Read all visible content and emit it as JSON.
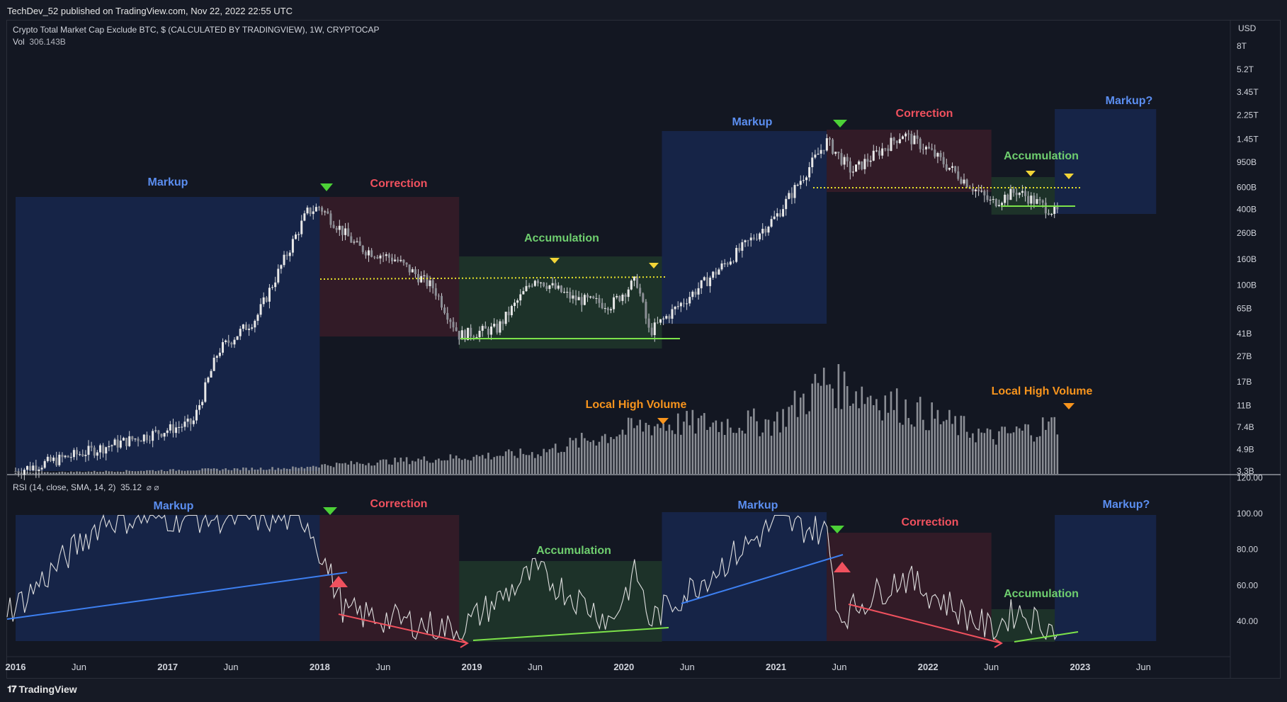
{
  "header": {
    "publisher": "TechDev_52 published on TradingView.com, Nov 22, 2022 22:55 UTC"
  },
  "footer": {
    "brand": "TradingView"
  },
  "colors": {
    "markup": "#5b8ef0",
    "correction": "#f0515e",
    "accumulation": "#6fcf6f",
    "volume_label": "#f7941d",
    "support": "#7ce24a",
    "resistance": "#e6e22b",
    "candle": "#d8d8d8",
    "volume": "#8a8d94",
    "background": "#131722"
  },
  "main": {
    "title": "Crypto Total Market Cap Exclude BTC, $ (CALCULATED BY TRADINGVIEW), 1W, CRYPTOCAP",
    "vol_label": "Vol",
    "vol_value": "306.143B",
    "currency": "USD",
    "y_ticks": [
      "8T",
      "5.2T",
      "3.45T",
      "2.25T",
      "1.45T",
      "950B",
      "600B",
      "400B",
      "260B",
      "160B",
      "100B",
      "65B",
      "41B",
      "27B",
      "17B",
      "11B",
      "7.4B",
      "4.9B",
      "3.3B"
    ],
    "labels": {
      "markup_1": "Markup",
      "correction_1": "Correction",
      "accumulation_1": "Accumulation",
      "markup_2": "Markup",
      "correction_2": "Correction",
      "accumulation_2": "Accumulation",
      "markup_3": "Markup?",
      "local_high_volume_1": "Local High Volume",
      "local_high_volume_2": "Local High Volume"
    }
  },
  "rsi": {
    "legend": "RSI (14, close, SMA, 14, 2)",
    "legend_value": "35.12",
    "legend_extra": "⌀ ⌀",
    "y_ticks": [
      "120.00",
      "100.00",
      "80.00",
      "60.00",
      "40.00"
    ],
    "labels": {
      "markup_1": "Markup",
      "correction_1": "Correction",
      "accumulation_1": "Accumulation",
      "markup_2": "Markup",
      "correction_2": "Correction",
      "accumulation_2": "Accumulation",
      "markup_3": "Markup?"
    }
  },
  "x_axis": {
    "ticks": [
      "2016",
      "Jun",
      "2017",
      "Jun",
      "2018",
      "Jun",
      "2019",
      "Jun",
      "2020",
      "Jun",
      "2021",
      "Jun",
      "2022",
      "Jun",
      "2023",
      "Jun"
    ]
  },
  "chart_data": {
    "type": "candlestick",
    "title": "Crypto Total Market Cap Exclude BTC, $ (CALCULATED BY TRADINGVIEW), 1W, CRYPTOCAP",
    "scale": "log",
    "ylim": [
      "3.3B",
      "8T"
    ],
    "xlim": [
      "2016-01",
      "2023-08"
    ],
    "approx_price_path": [
      {
        "t": "2016-01",
        "v": 3.3
      },
      {
        "t": "2017-03",
        "v": 8
      },
      {
        "t": "2017-05",
        "v": 30
      },
      {
        "t": "2017-08",
        "v": 55
      },
      {
        "t": "2017-12",
        "v": 380
      },
      {
        "t": "2018-01",
        "v": 420
      },
      {
        "t": "2018-04",
        "v": 200
      },
      {
        "t": "2018-07",
        "v": 160
      },
      {
        "t": "2018-10",
        "v": 95
      },
      {
        "t": "2018-12",
        "v": 40
      },
      {
        "t": "2019-03",
        "v": 45
      },
      {
        "t": "2019-06",
        "v": 115
      },
      {
        "t": "2019-09",
        "v": 78
      },
      {
        "t": "2019-12",
        "v": 70
      },
      {
        "t": "2020-02",
        "v": 110
      },
      {
        "t": "2020-03",
        "v": 42
      },
      {
        "t": "2020-08",
        "v": 120
      },
      {
        "t": "2021-01",
        "v": 350
      },
      {
        "t": "2021-05",
        "v": 1400
      },
      {
        "t": "2021-07",
        "v": 800
      },
      {
        "t": "2021-11",
        "v": 1600
      },
      {
        "t": "2022-01",
        "v": 1200
      },
      {
        "t": "2022-06",
        "v": 450
      },
      {
        "t": "2022-08",
        "v": 560
      },
      {
        "t": "2022-11",
        "v": 380
      }
    ],
    "phases": [
      {
        "name": "Markup",
        "start": "2016-01",
        "end": "2018-01"
      },
      {
        "name": "Correction",
        "start": "2018-01",
        "end": "2018-12"
      },
      {
        "name": "Accumulation",
        "start": "2018-12",
        "end": "2020-04"
      },
      {
        "name": "Markup",
        "start": "2020-04",
        "end": "2021-05"
      },
      {
        "name": "Correction",
        "start": "2021-05",
        "end": "2022-06"
      },
      {
        "name": "Accumulation",
        "start": "2022-06",
        "end": "2022-11"
      },
      {
        "name": "Markup?",
        "start": "2022-11",
        "end": "2023-07"
      }
    ],
    "volume_path": [
      {
        "t": "2017-12",
        "v": 0.15
      },
      {
        "t": "2019-06",
        "v": 0.4
      },
      {
        "t": "2020-03",
        "v": 0.95
      },
      {
        "t": "2021-01",
        "v": 1.0
      },
      {
        "t": "2021-05",
        "v": 1.8
      },
      {
        "t": "2022-06",
        "v": 0.7
      },
      {
        "t": "2022-11",
        "v": 0.95
      }
    ],
    "rsi_path": [
      {
        "t": "2016-01",
        "v": 48
      },
      {
        "t": "2016-08",
        "v": 97
      },
      {
        "t": "2017-03",
        "v": 98
      },
      {
        "t": "2017-12",
        "v": 97
      },
      {
        "t": "2018-03",
        "v": 45
      },
      {
        "t": "2018-12",
        "v": 35
      },
      {
        "t": "2019-06",
        "v": 68
      },
      {
        "t": "2019-12",
        "v": 40
      },
      {
        "t": "2020-02",
        "v": 68
      },
      {
        "t": "2020-03",
        "v": 40
      },
      {
        "t": "2021-01",
        "v": 95
      },
      {
        "t": "2021-05",
        "v": 90
      },
      {
        "t": "2021-06",
        "v": 42
      },
      {
        "t": "2021-11",
        "v": 65
      },
      {
        "t": "2022-06",
        "v": 35
      },
      {
        "t": "2022-08",
        "v": 46
      },
      {
        "t": "2022-11",
        "v": 35
      }
    ]
  }
}
